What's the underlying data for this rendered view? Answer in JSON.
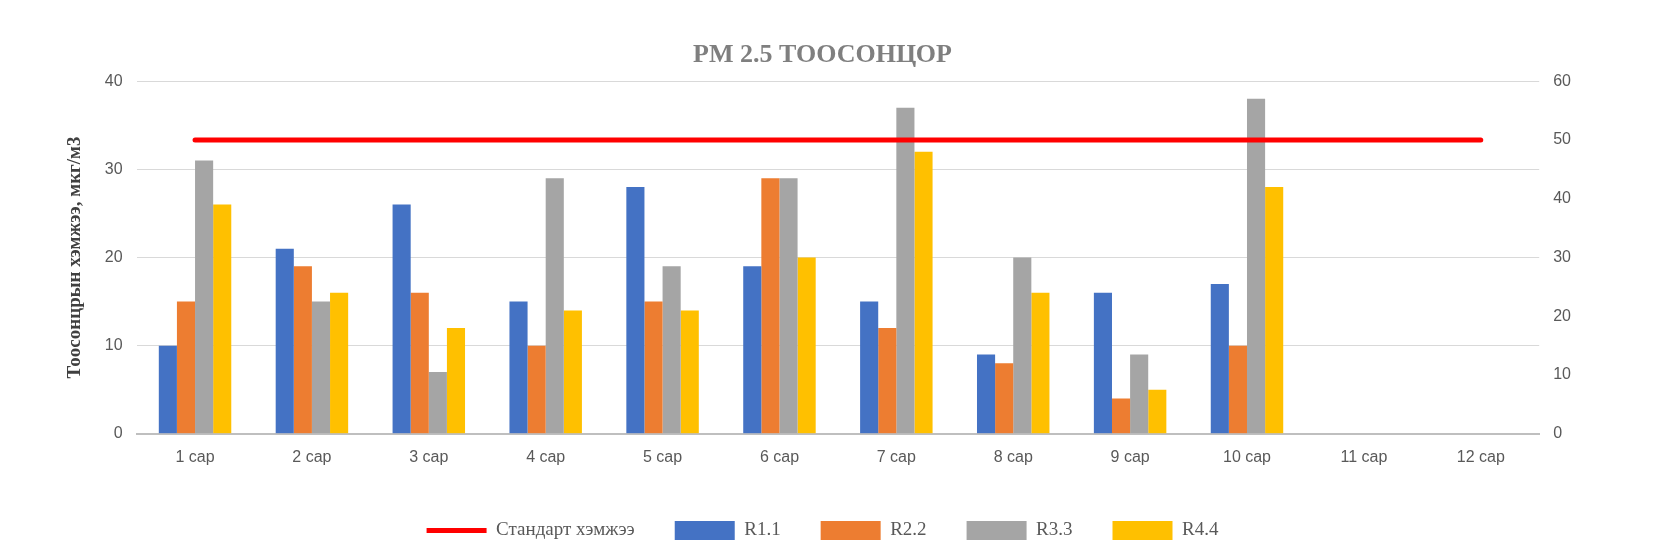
{
  "chart_data": {
    "type": "bar",
    "title": "PM 2.5 ТООСОНЦОР",
    "ylabel": "Тоосонцрын хэмжээ, мкг/м3",
    "categories": [
      "1 сар",
      "2 сар",
      "3 сар",
      "4 сар",
      "5 сар",
      "6 сар",
      "7 сар",
      "8 сар",
      "9 сар",
      "10 сар",
      "11 сар",
      "12 сар"
    ],
    "series": [
      {
        "name": "R1.1",
        "color": "#4472c4",
        "values": [
          10,
          21,
          26,
          15,
          28,
          19,
          15,
          9,
          16,
          17,
          null,
          null
        ]
      },
      {
        "name": "R2.2",
        "color": "#ed7d31",
        "values": [
          15,
          19,
          16,
          10,
          15,
          29,
          12,
          8,
          4,
          10,
          null,
          null
        ]
      },
      {
        "name": "R3.3",
        "color": "#a5a5a5",
        "values": [
          31,
          15,
          7,
          29,
          19,
          29,
          37,
          20,
          9,
          38,
          null,
          null
        ]
      },
      {
        "name": "R4.4",
        "color": "#ffc000",
        "values": [
          26,
          16,
          12,
          14,
          14,
          20,
          32,
          16,
          5,
          28,
          null,
          null
        ]
      },
      {
        "name": "Стандарт хэмжээ",
        "color": "#ff0000",
        "type": "line",
        "axis": "y2",
        "marker": "none",
        "line_style": "solid",
        "values": [
          50,
          50,
          50,
          50,
          50,
          50,
          50,
          50,
          50,
          50,
          50,
          50
        ]
      }
    ],
    "ylim": [
      0,
      40
    ],
    "yticks": [
      0,
      10,
      20,
      30,
      40
    ],
    "y2lim": [
      0,
      60
    ],
    "y2ticks": [
      0,
      10,
      20,
      30,
      40,
      50,
      60
    ],
    "grid": "y",
    "legend": "bottom"
  }
}
